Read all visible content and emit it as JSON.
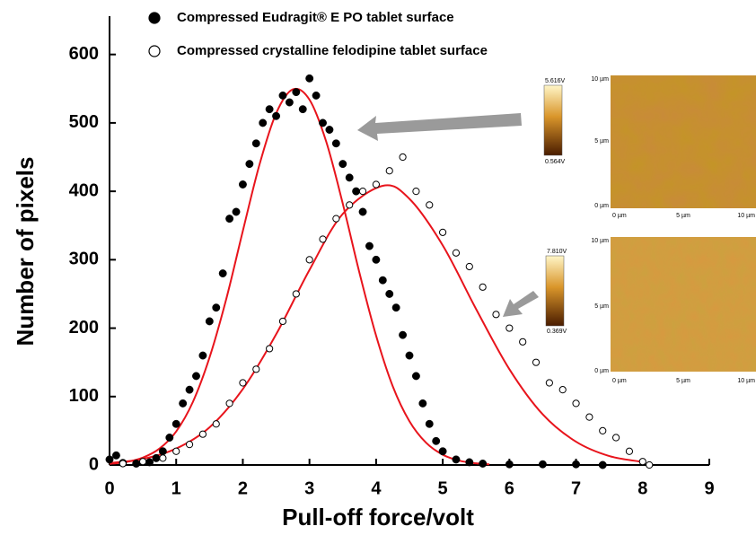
{
  "chart_data": {
    "type": "scatter",
    "x_label": "Pull-off force/volt",
    "y_label": "Number of pixels",
    "xlim": [
      0,
      9
    ],
    "ylim": [
      0,
      656
    ],
    "xticks": [
      0,
      1,
      2,
      3,
      4,
      5,
      6,
      7,
      8,
      9
    ],
    "yticks": [
      0,
      100,
      200,
      300,
      400,
      500,
      600
    ],
    "series": [
      {
        "name": "Compressed Eudragit® E PO tablet surface",
        "color": "#000000",
        "marker": "filled",
        "x": [
          0.0,
          0.1,
          0.2,
          0.4,
          0.6,
          0.7,
          0.8,
          0.9,
          1.0,
          1.1,
          1.2,
          1.3,
          1.4,
          1.5,
          1.6,
          1.7,
          1.8,
          1.9,
          2.0,
          2.1,
          2.2,
          2.3,
          2.4,
          2.5,
          2.6,
          2.7,
          2.8,
          2.9,
          3.0,
          3.1,
          3.2,
          3.3,
          3.4,
          3.5,
          3.6,
          3.7,
          3.8,
          3.9,
          4.0,
          4.1,
          4.2,
          4.3,
          4.4,
          4.5,
          4.6,
          4.7,
          4.8,
          4.9,
          5.0,
          5.2,
          5.4,
          5.6,
          6.0,
          6.5,
          7.0,
          7.4
        ],
        "values": [
          8,
          14,
          3,
          2,
          4,
          10,
          20,
          40,
          60,
          90,
          110,
          130,
          160,
          210,
          230,
          280,
          360,
          370,
          410,
          440,
          470,
          500,
          520,
          510,
          540,
          530,
          545,
          520,
          565,
          540,
          500,
          490,
          470,
          440,
          420,
          400,
          370,
          320,
          300,
          270,
          250,
          230,
          190,
          160,
          130,
          90,
          60,
          35,
          20,
          8,
          4,
          2,
          1,
          1,
          1,
          0
        ]
      },
      {
        "name": "Compressed crystalline felodipine tablet surface",
        "color": "#000000",
        "marker": "open",
        "x": [
          0.2,
          0.5,
          0.8,
          1.0,
          1.2,
          1.4,
          1.6,
          1.8,
          2.0,
          2.2,
          2.4,
          2.6,
          2.8,
          3.0,
          3.2,
          3.4,
          3.6,
          3.8,
          4.0,
          4.2,
          4.4,
          4.6,
          4.8,
          5.0,
          5.2,
          5.4,
          5.6,
          5.8,
          6.0,
          6.2,
          6.4,
          6.6,
          6.8,
          7.0,
          7.2,
          7.4,
          7.6,
          7.8,
          8.0,
          8.1
        ],
        "values": [
          2,
          5,
          10,
          20,
          30,
          45,
          60,
          90,
          120,
          140,
          170,
          210,
          250,
          300,
          330,
          360,
          380,
          400,
          410,
          430,
          450,
          400,
          380,
          340,
          310,
          290,
          260,
          220,
          200,
          180,
          150,
          120,
          110,
          90,
          70,
          50,
          40,
          20,
          5,
          0
        ]
      }
    ],
    "fit_lines": [
      {
        "color": "#e8141c",
        "x": [
          0,
          0.25,
          0.5,
          0.75,
          1.0,
          1.25,
          1.5,
          1.75,
          2.0,
          2.25,
          2.5,
          2.75,
          3.0,
          3.25,
          3.5,
          3.75,
          4.0,
          4.25,
          4.5,
          4.75,
          5.0,
          5.25,
          5.5,
          5.7
        ],
        "values": [
          1.6,
          4.4,
          10.8,
          24,
          49,
          92,
          157,
          242,
          342,
          439,
          514,
          549,
          534,
          473,
          382,
          281,
          189,
          115,
          64,
          32.5,
          15,
          6.3,
          2.4,
          1
        ]
      },
      {
        "color": "#e8141c",
        "x": [
          0,
          0.5,
          1.0,
          1.5,
          2.0,
          2.5,
          3.0,
          3.5,
          4.1,
          4.5,
          5.0,
          5.5,
          6.0,
          6.5,
          7.0,
          7.5,
          8.0
        ],
        "values": [
          2.8,
          8.8,
          24,
          55,
          111,
          191,
          285,
          367,
          408,
          389,
          321,
          228,
          140,
          74,
          34,
          13,
          4.5
        ]
      }
    ]
  },
  "insets": [
    {
      "colorbar_max": "5.616V",
      "colorbar_min": "0.564V",
      "y_labels": [
        "10 µm",
        "5 µm",
        "0 µm"
      ],
      "x_labels": [
        "0 µm",
        "5 µm",
        "10 µm"
      ]
    },
    {
      "colorbar_max": "7.810V",
      "colorbar_min": "0.369V",
      "y_labels": [
        "10 µm",
        "5 µm",
        "0 µm"
      ],
      "x_labels": [
        "0 µm",
        "5 µm",
        "10 µm"
      ]
    }
  ]
}
